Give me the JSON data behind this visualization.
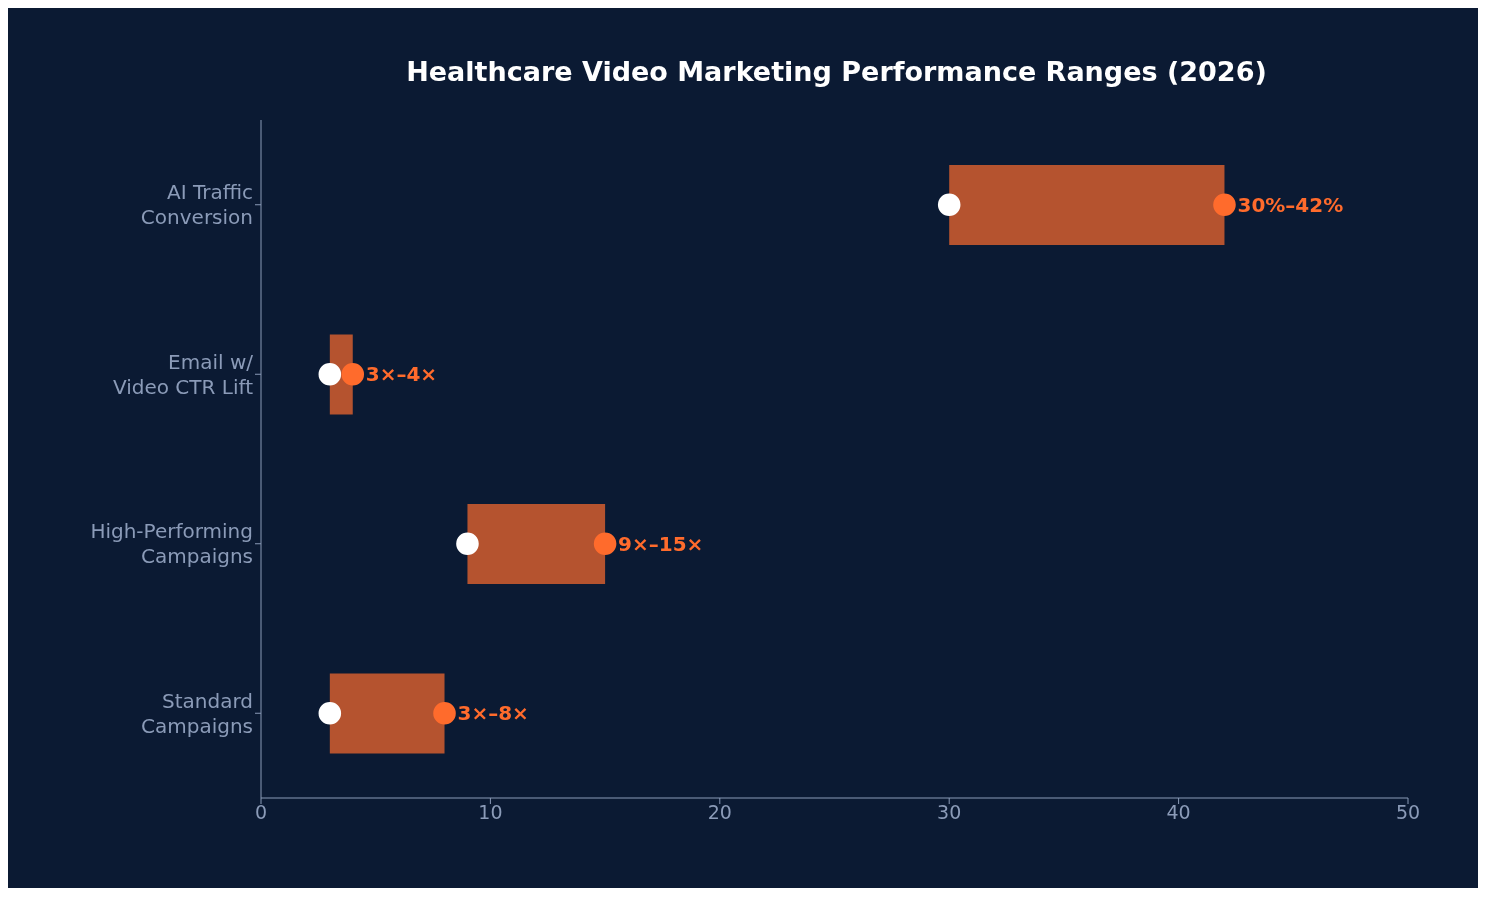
{
  "chart_data": {
    "type": "bar",
    "orientation": "horizontal",
    "title": "Healthcare Video Marketing Performance Ranges (2026)",
    "categories": [
      "AI Traffic\nConversion",
      "Email w/\nVideo CTR Lift",
      "High-Performing\nCampaigns",
      "Standard\nCampaigns"
    ],
    "series": [
      {
        "color": "#b5532f",
        "base": [
          30,
          3,
          9,
          3
        ],
        "values": [
          12,
          1,
          6,
          5
        ]
      },
      {
        "type": "scatter",
        "color": "#ffffff",
        "values": [
          30,
          3,
          9,
          3
        ]
      },
      {
        "type": "scatter",
        "color": "#ff6b2c",
        "values": [
          42,
          4,
          15,
          8
        ]
      }
    ],
    "annotations": [
      {
        "text": "30%–42%",
        "x": 42,
        "y": "AI Traffic\nConversion"
      },
      {
        "text": "3×–4×",
        "x": 4,
        "y": "Email w/\nVideo CTR Lift"
      },
      {
        "text": "9×–15×",
        "x": 15,
        "y": "High-Performing\nCampaigns"
      },
      {
        "text": "3×–8×",
        "x": 8,
        "y": "Standard\nCampaigns"
      }
    ],
    "xlim": [
      0,
      50
    ],
    "xticks": [
      0,
      10,
      20,
      30,
      40,
      50
    ],
    "grid": false,
    "legend": false,
    "marker": "circle"
  }
}
